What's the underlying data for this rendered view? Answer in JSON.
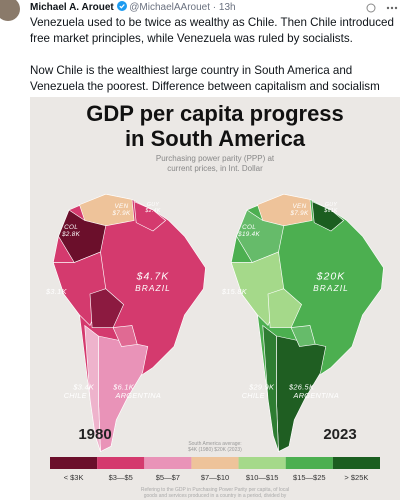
{
  "tweet": {
    "author": "Michael A. Arouet",
    "handle": "@MichaelAArouet · 13h",
    "paragraphs": [
      "Venezuela used to be twice as wealthy as Chile. Then Chile introduced free market principles, while Venezuela was ruled by socialists.",
      "Now Chile is the wealthiest large country in South America and Venezuela the poorest. Difference between capitalism and socialism visualized."
    ]
  },
  "infographic": {
    "title": [
      "GDP per capita progress",
      "in South America"
    ],
    "subtitle": [
      "Purchasing power parity (PPP) at",
      "current prices, in Int. Dollar"
    ],
    "maps": [
      {
        "year": "1980",
        "labels": [
          "VEN",
          "$7.9K",
          "GUY",
          "$2.4K",
          "COL",
          "$2.8K",
          "$3.1K",
          "$4.7K",
          "BRAZIL",
          "$3.4K",
          "CHILE",
          "$6.1K",
          "ARGENTINA"
        ]
      },
      {
        "year": "2023",
        "labels": [
          "VEN",
          "$7.9K",
          "GUY",
          "$61K",
          "COL",
          "$19.4K",
          "$15.8K",
          "$20K",
          "BRAZIL",
          "$29.9K",
          "CHILE",
          "$26.5K",
          "ARGENTINA"
        ]
      }
    ],
    "average_note": [
      "South America average:",
      "$4K (1980) $20K (2023)"
    ],
    "legend": [
      "< $3K",
      "$3—$5",
      "$5—$7",
      "$7—$10",
      "$10—$15",
      "$15—$25",
      "> $25K"
    ],
    "footnote": [
      "Refering to the GDP in Purchasing Power Parity per capita, of local",
      "goods and services produced in a country in a period, divided by"
    ]
  }
}
